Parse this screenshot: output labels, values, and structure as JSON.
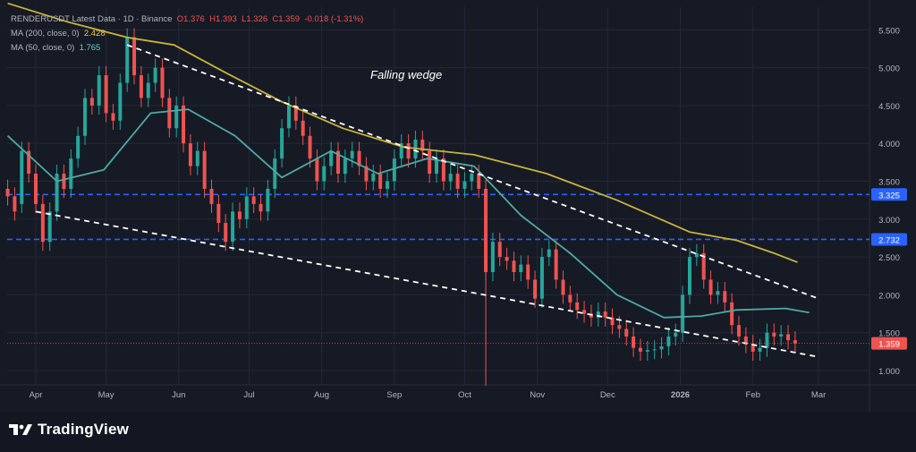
{
  "legend": {
    "symbol_line": "RENDERUSDT Latest Data · 1D · Binance",
    "open": "O1.376",
    "high": "H1.393",
    "low": "L1.326",
    "close": "C1.359",
    "change": "-0.018 (-1.31%)",
    "ma200_label": "MA (200, close, 0)",
    "ma200_value": "2.428",
    "ma50_label": "MA (50, close, 0)",
    "ma50_value": "1.765"
  },
  "annotation": "Falling wedge",
  "brand": {
    "name": "TradingView"
  },
  "colors": {
    "background": "#161a25",
    "up": "#26a69a",
    "down": "#ef5350",
    "ma200": "#c9b33a",
    "ma50": "#4fa9a3",
    "level_line": "#2962ff",
    "wedge": "#ffffff"
  },
  "chart_data": {
    "type": "candlestick",
    "title": "RENDERUSDT Latest Data · 1D · Binance",
    "price_axis": {
      "ticks": [
        "5.500",
        "5.000",
        "4.500",
        "4.000",
        "3.500",
        "3.000",
        "2.500",
        "2.000",
        "1.500",
        "1.000"
      ],
      "range": [
        0.8,
        5.8
      ],
      "side": "right"
    },
    "time_axis": {
      "ticks": [
        "Apr",
        "May",
        "Jun",
        "Jul",
        "Aug",
        "Sep",
        "Oct",
        "Nov",
        "Dec",
        "2026",
        "Feb",
        "Mar"
      ]
    },
    "horizontal_levels": [
      {
        "price": 3.325,
        "label": "3.325"
      },
      {
        "price": 2.732,
        "label": "2.732"
      }
    ],
    "last_price": {
      "price": 1.359,
      "label": "1.359"
    },
    "ma200": [
      [
        "2025-03-20",
        5.85
      ],
      [
        "2025-04-15",
        5.6
      ],
      [
        "2025-05-10",
        5.4
      ],
      [
        "2025-05-30",
        5.3
      ],
      [
        "2025-06-20",
        4.95
      ],
      [
        "2025-07-15",
        4.55
      ],
      [
        "2025-08-10",
        4.2
      ],
      [
        "2025-09-05",
        3.95
      ],
      [
        "2025-10-05",
        3.85
      ],
      [
        "2025-11-05",
        3.6
      ],
      [
        "2025-12-05",
        3.25
      ],
      [
        "2026-01-05",
        2.83
      ],
      [
        "2026-01-25",
        2.72
      ],
      [
        "2026-02-10",
        2.55
      ],
      [
        "2026-02-20",
        2.43
      ]
    ],
    "ma50": [
      [
        "2025-03-20",
        4.1
      ],
      [
        "2025-04-10",
        3.5
      ],
      [
        "2025-04-30",
        3.65
      ],
      [
        "2025-05-20",
        4.4
      ],
      [
        "2025-06-05",
        4.45
      ],
      [
        "2025-06-25",
        4.1
      ],
      [
        "2025-07-15",
        3.55
      ],
      [
        "2025-08-05",
        3.9
      ],
      [
        "2025-08-25",
        3.6
      ],
      [
        "2025-09-15",
        3.8
      ],
      [
        "2025-10-05",
        3.7
      ],
      [
        "2025-10-25",
        3.05
      ],
      [
        "2025-11-15",
        2.55
      ],
      [
        "2025-12-05",
        2.0
      ],
      [
        "2025-12-25",
        1.7
      ],
      [
        "2026-01-10",
        1.72
      ],
      [
        "2026-01-25",
        1.8
      ],
      [
        "2026-02-15",
        1.82
      ],
      [
        "2026-02-25",
        1.765
      ]
    ],
    "wedge_upper": [
      [
        "2025-05-10",
        5.3
      ],
      [
        "2026-03-01",
        1.95
      ]
    ],
    "wedge_lower": [
      [
        "2025-04-01",
        3.1
      ],
      [
        "2026-03-01",
        1.18
      ]
    ],
    "candles": [
      [
        "2025-03-20",
        3.4,
        3.3
      ],
      [
        "2025-03-23",
        3.3,
        3.1
      ],
      [
        "2025-03-26",
        3.2,
        3.9
      ],
      [
        "2025-03-29",
        3.9,
        3.6
      ],
      [
        "2025-04-01",
        3.6,
        3.2
      ],
      [
        "2025-04-04",
        3.2,
        2.7
      ],
      [
        "2025-04-07",
        2.7,
        3.1
      ],
      [
        "2025-04-10",
        3.1,
        3.6
      ],
      [
        "2025-04-13",
        3.6,
        3.4
      ],
      [
        "2025-04-16",
        3.4,
        3.8
      ],
      [
        "2025-04-19",
        3.8,
        4.1
      ],
      [
        "2025-04-22",
        4.1,
        4.6
      ],
      [
        "2025-04-25",
        4.6,
        4.5
      ],
      [
        "2025-04-28",
        4.5,
        4.9
      ],
      [
        "2025-05-01",
        4.9,
        4.4
      ],
      [
        "2025-05-04",
        4.4,
        4.3
      ],
      [
        "2025-05-07",
        4.3,
        4.8
      ],
      [
        "2025-05-10",
        4.8,
        5.4
      ],
      [
        "2025-05-13",
        5.4,
        4.9
      ],
      [
        "2025-05-16",
        4.9,
        4.6
      ],
      [
        "2025-05-19",
        4.6,
        4.8
      ],
      [
        "2025-05-22",
        4.8,
        5.0
      ],
      [
        "2025-05-25",
        5.0,
        4.6
      ],
      [
        "2025-05-28",
        4.6,
        4.2
      ],
      [
        "2025-05-31",
        4.2,
        4.5
      ],
      [
        "2025-06-03",
        4.5,
        4.0
      ],
      [
        "2025-06-06",
        4.0,
        3.7
      ],
      [
        "2025-06-09",
        3.7,
        3.9
      ],
      [
        "2025-06-12",
        3.9,
        3.4
      ],
      [
        "2025-06-15",
        3.4,
        3.2
      ],
      [
        "2025-06-18",
        3.2,
        2.95
      ],
      [
        "2025-06-21",
        2.95,
        2.7
      ],
      [
        "2025-06-24",
        2.7,
        3.1
      ],
      [
        "2025-06-27",
        3.1,
        3.0
      ],
      [
        "2025-06-30",
        3.0,
        3.3
      ],
      [
        "2025-07-03",
        3.3,
        3.2
      ],
      [
        "2025-07-06",
        3.2,
        3.1
      ],
      [
        "2025-07-09",
        3.1,
        3.4
      ],
      [
        "2025-07-12",
        3.4,
        3.8
      ],
      [
        "2025-07-15",
        3.8,
        4.2
      ],
      [
        "2025-07-18",
        4.2,
        4.5
      ],
      [
        "2025-07-21",
        4.5,
        4.3
      ],
      [
        "2025-07-24",
        4.3,
        4.1
      ],
      [
        "2025-07-27",
        4.1,
        3.8
      ],
      [
        "2025-07-30",
        3.8,
        3.5
      ],
      [
        "2025-08-02",
        3.5,
        3.7
      ],
      [
        "2025-08-05",
        3.7,
        3.9
      ],
      [
        "2025-08-08",
        3.9,
        3.6
      ],
      [
        "2025-08-11",
        3.6,
        3.8
      ],
      [
        "2025-08-14",
        3.8,
        3.9
      ],
      [
        "2025-08-17",
        3.9,
        3.7
      ],
      [
        "2025-08-20",
        3.7,
        3.5
      ],
      [
        "2025-08-23",
        3.5,
        3.6
      ],
      [
        "2025-08-26",
        3.6,
        3.4
      ],
      [
        "2025-08-29",
        3.4,
        3.5
      ],
      [
        "2025-09-01",
        3.5,
        3.8
      ],
      [
        "2025-09-04",
        3.8,
        4.0
      ],
      [
        "2025-09-07",
        4.0,
        3.8
      ],
      [
        "2025-09-10",
        3.8,
        4.05
      ],
      [
        "2025-09-13",
        4.05,
        3.9
      ],
      [
        "2025-09-16",
        3.9,
        3.6
      ],
      [
        "2025-09-19",
        3.6,
        3.8
      ],
      [
        "2025-09-22",
        3.8,
        3.5
      ],
      [
        "2025-09-25",
        3.5,
        3.6
      ],
      [
        "2025-09-28",
        3.6,
        3.4
      ],
      [
        "2025-10-01",
        3.4,
        3.5
      ],
      [
        "2025-10-04",
        3.5,
        3.6
      ],
      [
        "2025-10-07",
        3.6,
        3.4
      ],
      [
        "2025-10-10",
        3.4,
        2.3
      ],
      [
        "2025-10-13",
        2.3,
        2.7
      ],
      [
        "2025-10-16",
        2.7,
        2.5
      ],
      [
        "2025-10-19",
        2.5,
        2.45
      ],
      [
        "2025-10-22",
        2.45,
        2.3
      ],
      [
        "2025-10-25",
        2.3,
        2.4
      ],
      [
        "2025-10-28",
        2.4,
        2.2
      ],
      [
        "2025-10-31",
        2.2,
        1.95
      ],
      [
        "2025-11-03",
        1.95,
        2.5
      ],
      [
        "2025-11-06",
        2.5,
        2.6
      ],
      [
        "2025-11-09",
        2.6,
        2.2
      ],
      [
        "2025-11-12",
        2.2,
        2.0
      ],
      [
        "2025-11-15",
        2.0,
        1.9
      ],
      [
        "2025-11-18",
        1.9,
        1.8
      ],
      [
        "2025-11-21",
        1.8,
        1.75
      ],
      [
        "2025-11-24",
        1.75,
        1.7
      ],
      [
        "2025-11-27",
        1.7,
        1.78
      ],
      [
        "2025-11-30",
        1.78,
        1.7
      ],
      [
        "2025-12-03",
        1.7,
        1.6
      ],
      [
        "2025-12-06",
        1.6,
        1.55
      ],
      [
        "2025-12-09",
        1.55,
        1.45
      ],
      [
        "2025-12-12",
        1.45,
        1.3
      ],
      [
        "2025-12-15",
        1.3,
        1.25
      ],
      [
        "2025-12-18",
        1.25,
        1.27
      ],
      [
        "2025-12-21",
        1.27,
        1.28
      ],
      [
        "2025-12-24",
        1.28,
        1.32
      ],
      [
        "2025-12-27",
        1.32,
        1.45
      ],
      [
        "2025-12-30",
        1.45,
        1.5
      ],
      [
        "2026-01-02",
        1.5,
        2.0
      ],
      [
        "2026-01-05",
        2.0,
        2.5
      ],
      [
        "2026-01-08",
        2.5,
        2.55
      ],
      [
        "2026-01-11",
        2.55,
        2.2
      ],
      [
        "2026-01-14",
        2.2,
        2.0
      ],
      [
        "2026-01-17",
        2.0,
        2.05
      ],
      [
        "2026-01-20",
        2.05,
        1.9
      ],
      [
        "2026-01-23",
        1.9,
        1.6
      ],
      [
        "2026-01-26",
        1.6,
        1.45
      ],
      [
        "2026-01-29",
        1.45,
        1.35
      ],
      [
        "2026-02-01",
        1.35,
        1.25
      ],
      [
        "2026-02-04",
        1.25,
        1.3
      ],
      [
        "2026-02-07",
        1.3,
        1.5
      ],
      [
        "2026-02-10",
        1.5,
        1.45
      ],
      [
        "2026-02-13",
        1.45,
        1.48
      ],
      [
        "2026-02-16",
        1.48,
        1.4
      ],
      [
        "2026-02-19",
        1.4,
        1.359
      ]
    ]
  }
}
